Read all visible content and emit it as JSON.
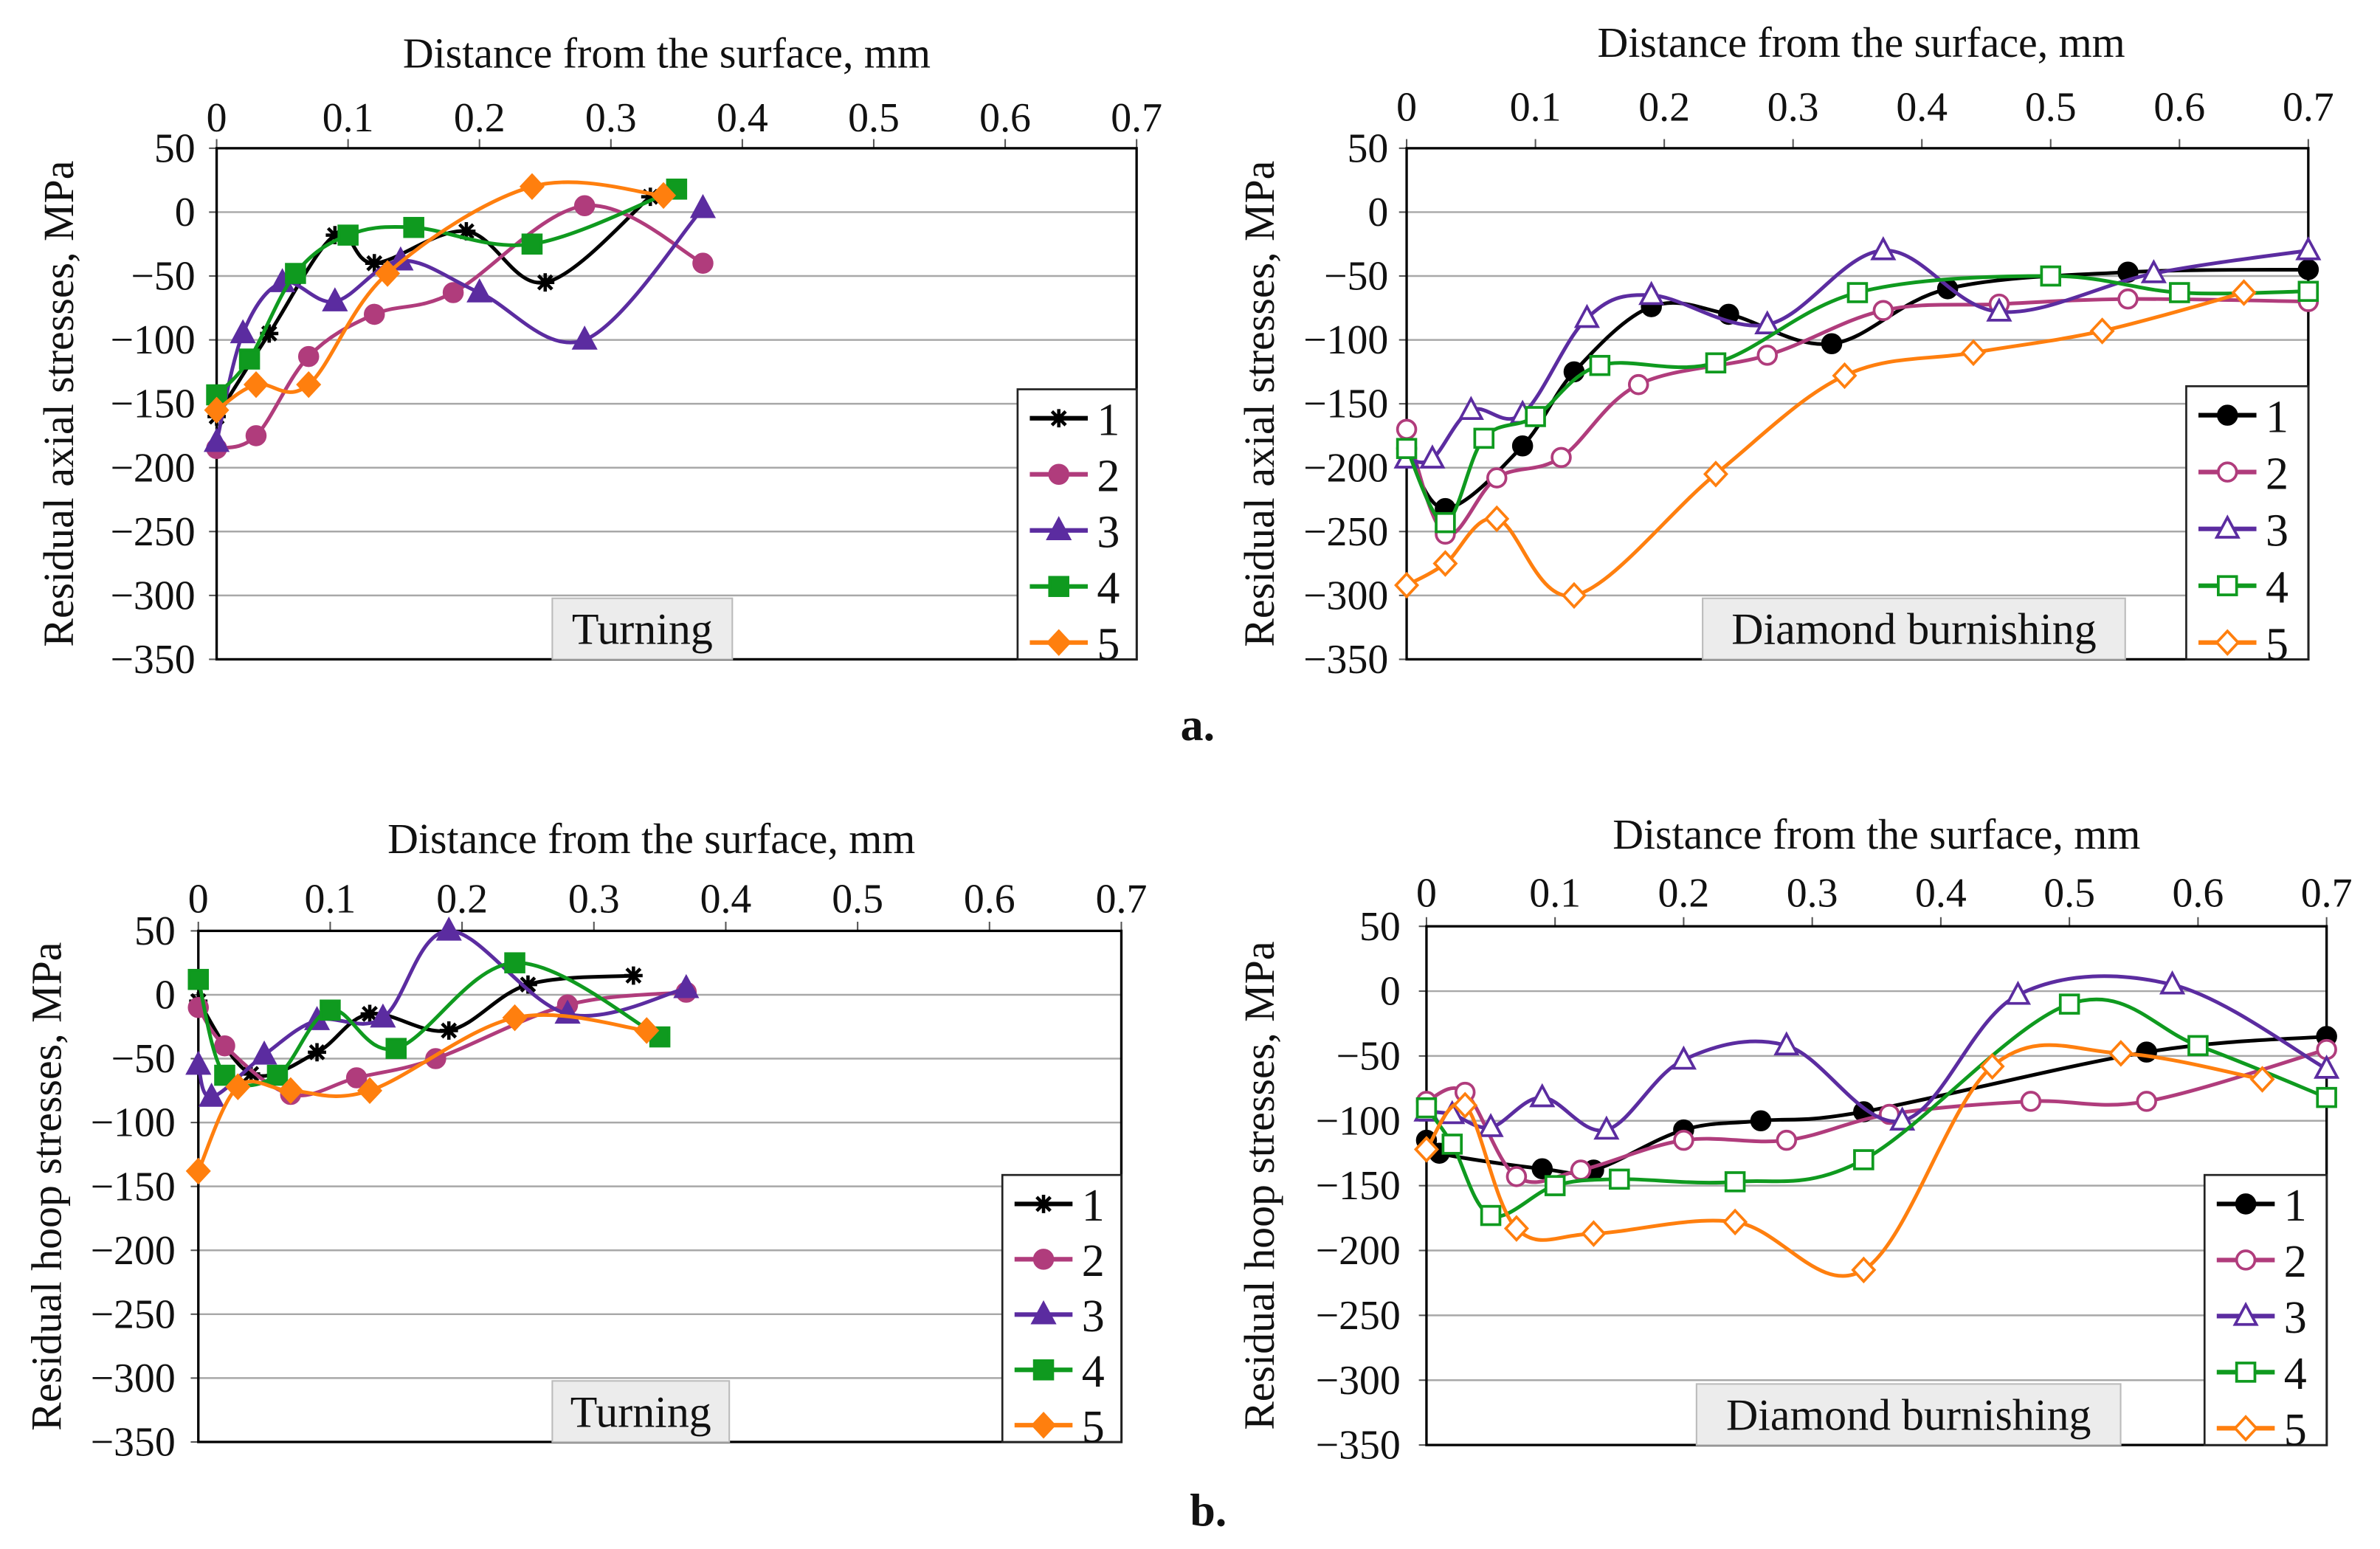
{
  "figure_labels": {
    "a": "a.",
    "b": "b."
  },
  "series_colors": [
    "#000000",
    "#b03c7c",
    "#5b2ca0",
    "#0f9a1f",
    "#ff7f0e"
  ],
  "chart_data": [
    {
      "id": "a-turning",
      "type": "line",
      "title": "",
      "xlabel": "Distance from the surface, mm",
      "ylabel": "Residual axial stresses, MPa",
      "annotation": "Turning",
      "xlim": [
        0,
        0.7
      ],
      "ylim": [
        -350,
        50
      ],
      "xticks": [
        0,
        0.1,
        0.2,
        0.3,
        0.4,
        0.5,
        0.6,
        0.7
      ],
      "xtick_labels": [
        "0",
        "0.1",
        "0.2",
        "0.3",
        "0.4",
        "0.5",
        "0.6",
        "0.7"
      ],
      "yticks": [
        50,
        0,
        -50,
        -100,
        -150,
        -200,
        -250,
        -300,
        -350
      ],
      "ytick_labels": [
        "50",
        "0",
        "−50",
        "−100",
        "−150",
        "−200",
        "−250",
        "−300",
        "−350"
      ],
      "grid": true,
      "legend": "bottom-right",
      "markers_filled": true,
      "markers": [
        "asterisk",
        "circle",
        "triangle",
        "square",
        "diamond"
      ],
      "series": [
        {
          "name": "1",
          "x": [
            0,
            0.04,
            0.09,
            0.12,
            0.19,
            0.25,
            0.33
          ],
          "y": [
            -160,
            -95,
            -18,
            -40,
            -15,
            -55,
            12
          ]
        },
        {
          "name": "2",
          "x": [
            0,
            0.03,
            0.07,
            0.12,
            0.18,
            0.28,
            0.37
          ],
          "y": [
            -185,
            -175,
            -113,
            -80,
            -63,
            5,
            -40
          ]
        },
        {
          "name": "3",
          "x": [
            0,
            0.02,
            0.05,
            0.09,
            0.14,
            0.2,
            0.28,
            0.37
          ],
          "y": [
            -180,
            -95,
            -55,
            -70,
            -38,
            -63,
            -100,
            3
          ]
        },
        {
          "name": "4",
          "x": [
            0,
            0.025,
            0.06,
            0.1,
            0.15,
            0.24,
            0.35
          ],
          "y": [
            -143,
            -115,
            -48,
            -18,
            -12,
            -25,
            18
          ]
        },
        {
          "name": "5",
          "x": [
            0,
            0.03,
            0.07,
            0.13,
            0.24,
            0.34
          ],
          "y": [
            -155,
            -135,
            -135,
            -48,
            20,
            13
          ]
        }
      ]
    },
    {
      "id": "a-burnishing",
      "type": "line",
      "title": "",
      "xlabel": "Distance from the surface, mm",
      "ylabel": "Residual axial stresses, MPa",
      "annotation": "Diamond burnishing",
      "xlim": [
        0,
        0.7
      ],
      "ylim": [
        -350,
        50
      ],
      "xticks": [
        0,
        0.1,
        0.2,
        0.3,
        0.4,
        0.5,
        0.6,
        0.7
      ],
      "xtick_labels": [
        "0",
        "0.1",
        "0.2",
        "0.3",
        "0.4",
        "0.5",
        "0.6",
        "0.7"
      ],
      "yticks": [
        50,
        0,
        -50,
        -100,
        -150,
        -200,
        -250,
        -300,
        -350
      ],
      "ytick_labels": [
        "50",
        "0",
        "−50",
        "−100",
        "−150",
        "−200",
        "−250",
        "−300",
        "−350"
      ],
      "grid": true,
      "legend": "bottom-right",
      "markers_filled": false,
      "markers": [
        "circle-filled",
        "circle",
        "triangle",
        "square",
        "diamond"
      ],
      "series": [
        {
          "name": "1",
          "x": [
            0,
            0.03,
            0.09,
            0.13,
            0.19,
            0.25,
            0.33,
            0.42,
            0.56,
            0.7
          ],
          "y": [
            -185,
            -232,
            -183,
            -125,
            -74,
            -80,
            -103,
            -60,
            -47,
            -45
          ]
        },
        {
          "name": "2",
          "x": [
            0,
            0.03,
            0.07,
            0.12,
            0.18,
            0.28,
            0.37,
            0.46,
            0.56,
            0.7
          ],
          "y": [
            -170,
            -252,
            -208,
            -192,
            -135,
            -112,
            -77,
            -72,
            -68,
            -70
          ]
        },
        {
          "name": "3",
          "x": [
            0,
            0.02,
            0.05,
            0.09,
            0.14,
            0.19,
            0.28,
            0.37,
            0.46,
            0.58,
            0.7
          ],
          "y": [
            -193,
            -193,
            -155,
            -158,
            -83,
            -65,
            -88,
            -30,
            -78,
            -48,
            -30
          ]
        },
        {
          "name": "4",
          "x": [
            0,
            0.03,
            0.06,
            0.1,
            0.15,
            0.24,
            0.35,
            0.5,
            0.6,
            0.7
          ],
          "y": [
            -185,
            -243,
            -177,
            -160,
            -120,
            -118,
            -63,
            -50,
            -63,
            -62
          ]
        },
        {
          "name": "5",
          "x": [
            0,
            0.03,
            0.07,
            0.13,
            0.24,
            0.34,
            0.44,
            0.54,
            0.65
          ],
          "y": [
            -292,
            -275,
            -240,
            -300,
            -205,
            -128,
            -110,
            -93,
            -63
          ]
        }
      ]
    },
    {
      "id": "b-turning",
      "type": "line",
      "title": "",
      "xlabel": "Distance from the surface, mm",
      "ylabel": "Residual hoop stresses, MPa",
      "annotation": "Turning",
      "xlim": [
        0,
        0.7
      ],
      "ylim": [
        -350,
        50
      ],
      "xticks": [
        0,
        0.1,
        0.2,
        0.3,
        0.4,
        0.5,
        0.6,
        0.7
      ],
      "xtick_labels": [
        "0",
        "0.1",
        "0.2",
        "0.3",
        "0.4",
        "0.5",
        "0.6",
        "0.7"
      ],
      "yticks": [
        50,
        0,
        -50,
        -100,
        -150,
        -200,
        -250,
        -300,
        -350
      ],
      "ytick_labels": [
        "50",
        "0",
        "−50",
        "−100",
        "−150",
        "−200",
        "−250",
        "−300",
        "−350"
      ],
      "grid": true,
      "legend": "bottom-right",
      "markers_filled": true,
      "markers": [
        "asterisk",
        "circle",
        "triangle",
        "square",
        "diamond"
      ],
      "series": [
        {
          "name": "1",
          "x": [
            0,
            0.04,
            0.09,
            0.13,
            0.19,
            0.25,
            0.33
          ],
          "y": [
            -5,
            -62,
            -45,
            -15,
            -28,
            8,
            15
          ]
        },
        {
          "name": "2",
          "x": [
            0,
            0.02,
            0.07,
            0.12,
            0.18,
            0.28,
            0.37
          ],
          "y": [
            -10,
            -40,
            -78,
            -65,
            -50,
            -8,
            2
          ]
        },
        {
          "name": "3",
          "x": [
            0,
            0.01,
            0.05,
            0.09,
            0.14,
            0.19,
            0.28,
            0.37
          ],
          "y": [
            -55,
            -80,
            -47,
            -20,
            -18,
            50,
            -15,
            5
          ]
        },
        {
          "name": "4",
          "x": [
            0,
            0.02,
            0.06,
            0.1,
            0.15,
            0.24,
            0.35
          ],
          "y": [
            12,
            -63,
            -63,
            -12,
            -42,
            25,
            -33
          ]
        },
        {
          "name": "5",
          "x": [
            0,
            0.03,
            0.07,
            0.13,
            0.24,
            0.34
          ],
          "y": [
            -138,
            -72,
            -75,
            -75,
            -18,
            -28
          ]
        }
      ]
    },
    {
      "id": "b-burnishing",
      "type": "line",
      "title": "",
      "xlabel": "Distance from the surface, mm",
      "ylabel": "Residual hoop stresses, MPa",
      "annotation": "Diamond burnishing",
      "xlim": [
        0,
        0.7
      ],
      "ylim": [
        -350,
        50
      ],
      "xticks": [
        0,
        0.1,
        0.2,
        0.3,
        0.4,
        0.5,
        0.6,
        0.7
      ],
      "xtick_labels": [
        "0",
        "0.1",
        "0.2",
        "0.3",
        "0.4",
        "0.5",
        "0.6",
        "0.7"
      ],
      "yticks": [
        50,
        0,
        -50,
        -100,
        -150,
        -200,
        -250,
        -300,
        -350
      ],
      "ytick_labels": [
        "50",
        "0",
        "−50",
        "−100",
        "−150",
        "−200",
        "−250",
        "−300",
        "−350"
      ],
      "grid": true,
      "legend": "bottom-right",
      "markers_filled": false,
      "markers": [
        "circle-filled",
        "circle",
        "triangle",
        "square",
        "diamond"
      ],
      "series": [
        {
          "name": "1",
          "x": [
            0,
            0.01,
            0.09,
            0.13,
            0.2,
            0.26,
            0.34,
            0.56,
            0.7
          ],
          "y": [
            -115,
            -125,
            -137,
            -138,
            -107,
            -100,
            -93,
            -47,
            -35
          ]
        },
        {
          "name": "2",
          "x": [
            0,
            0.03,
            0.07,
            0.12,
            0.2,
            0.28,
            0.36,
            0.47,
            0.56,
            0.7
          ],
          "y": [
            -85,
            -78,
            -143,
            -138,
            -115,
            -115,
            -95,
            -85,
            -85,
            -45
          ]
        },
        {
          "name": "3",
          "x": [
            0,
            0.02,
            0.05,
            0.09,
            0.14,
            0.2,
            0.28,
            0.37,
            0.46,
            0.58,
            0.7
          ],
          "y": [
            -93,
            -95,
            -105,
            -82,
            -107,
            -53,
            -42,
            -100,
            -3,
            5,
            -60
          ]
        },
        {
          "name": "4",
          "x": [
            0,
            0.02,
            0.05,
            0.1,
            0.15,
            0.24,
            0.34,
            0.5,
            0.6,
            0.7
          ],
          "y": [
            -90,
            -118,
            -173,
            -150,
            -145,
            -147,
            -130,
            -10,
            -42,
            -82
          ]
        },
        {
          "name": "5",
          "x": [
            0,
            0.03,
            0.07,
            0.13,
            0.24,
            0.34,
            0.44,
            0.54,
            0.65
          ],
          "y": [
            -122,
            -88,
            -183,
            -187,
            -178,
            -215,
            -58,
            -48,
            -68
          ]
        }
      ]
    }
  ]
}
